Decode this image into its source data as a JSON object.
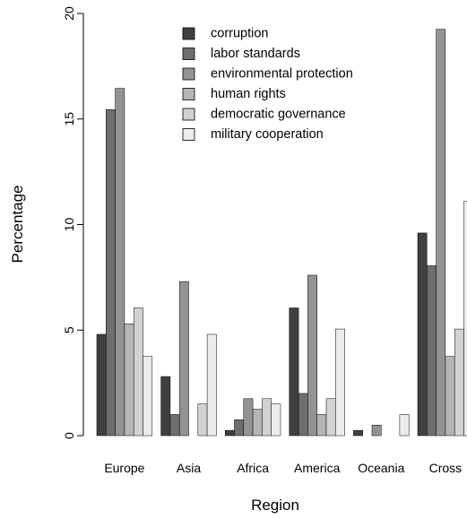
{
  "chart_data": {
    "type": "bar",
    "title": "",
    "xlabel": "Region",
    "ylabel": "Percentage",
    "ylim": [
      0,
      20
    ],
    "yticks": [
      0,
      5,
      10,
      15,
      20
    ],
    "categories": [
      "Europe",
      "Asia",
      "Africa",
      "America",
      "Oceania",
      "Cross"
    ],
    "series": [
      {
        "name": "corruption",
        "color": "#404040",
        "values": [
          4.8,
          2.8,
          0.25,
          6.05,
          0.25,
          9.6
        ]
      },
      {
        "name": "labor standards",
        "color": "#6e6e6e",
        "values": [
          15.45,
          1.0,
          0.75,
          2.0,
          0.0,
          8.05
        ]
      },
      {
        "name": "environmental protection",
        "color": "#939393",
        "values": [
          16.45,
          7.3,
          1.75,
          7.6,
          0.5,
          19.25
        ]
      },
      {
        "name": "human rights",
        "color": "#b5b5b5",
        "values": [
          5.3,
          0.0,
          1.25,
          1.0,
          0.0,
          3.75
        ]
      },
      {
        "name": "democratic governance",
        "color": "#d2d2d2",
        "values": [
          6.05,
          1.5,
          1.75,
          1.75,
          0.0,
          5.05
        ]
      },
      {
        "name": "military cooperation",
        "color": "#ececec",
        "values": [
          3.75,
          4.8,
          1.5,
          5.05,
          1.0,
          11.1
        ]
      }
    ],
    "grid": false,
    "legend_position": "top-center"
  }
}
